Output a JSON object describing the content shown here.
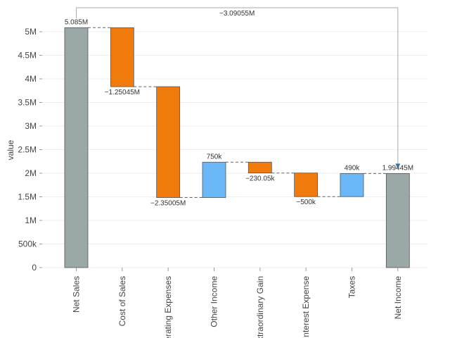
{
  "chart_data": {
    "type": "bar",
    "subtype": "waterfall",
    "categories": [
      "Net Sales",
      "Cost of Sales",
      "Operating Expenses",
      "Other Income",
      "Extraordinary Gain",
      "Interest Expense",
      "Taxes",
      "Net Income"
    ],
    "values": [
      5085000,
      -1250450,
      -2350050,
      750000,
      -230050,
      -500000,
      490000,
      1994450
    ],
    "bar_kind": [
      "total",
      "decrease",
      "decrease",
      "increase",
      "decrease",
      "decrease",
      "increase",
      "total"
    ],
    "data_labels": [
      "5.085M",
      "−1.25045M",
      "−2.35005M",
      "750k",
      "−230.05k",
      "−500k",
      "490k",
      "1.99445M"
    ],
    "ylabel": "value",
    "xlabel": "",
    "ylim": [
      0,
      5200000
    ],
    "yticks": [
      0,
      500000,
      1000000,
      1500000,
      2000000,
      2500000,
      3000000,
      3500000,
      4000000,
      4500000,
      5000000
    ],
    "ytick_labels": [
      "0",
      "500k",
      "1M",
      "1.5M",
      "2M",
      "2.5M",
      "3M",
      "3.5M",
      "4M",
      "4.5M",
      "5M"
    ],
    "annotation": {
      "label": "−3.09055M",
      "from": "Net Sales",
      "to": "Net Income",
      "value": -3090550
    },
    "colors": {
      "total": "#9aa9a7",
      "decrease": "#f07b0c",
      "increase": "#6ab8f7"
    },
    "grid": true,
    "legend": "none"
  }
}
